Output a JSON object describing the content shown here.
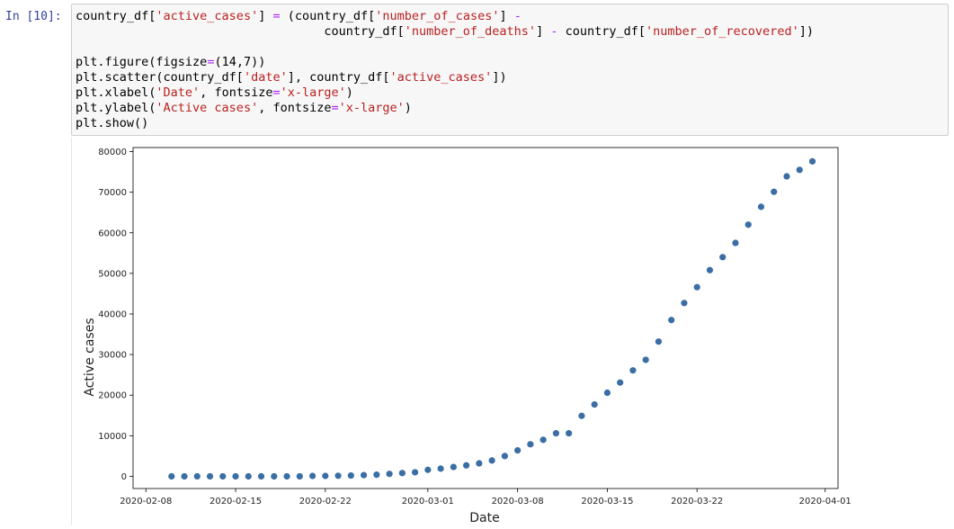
{
  "cell": {
    "prompt": "In [10]:",
    "code_lines": [
      [
        {
          "t": "country_df[",
          "c": ""
        },
        {
          "t": "'active_cases'",
          "c": "str"
        },
        {
          "t": "] ",
          "c": ""
        },
        {
          "t": "=",
          "c": "op"
        },
        {
          "t": " (country_df[",
          "c": ""
        },
        {
          "t": "'number_of_cases'",
          "c": "str"
        },
        {
          "t": "] ",
          "c": ""
        },
        {
          "t": "-",
          "c": "op"
        }
      ],
      [
        {
          "t": "                                  country_df[",
          "c": ""
        },
        {
          "t": "'number_of_deaths'",
          "c": "str"
        },
        {
          "t": "] ",
          "c": ""
        },
        {
          "t": "-",
          "c": "op"
        },
        {
          "t": " country_df[",
          "c": ""
        },
        {
          "t": "'number_of_recovered'",
          "c": "str"
        },
        {
          "t": "])",
          "c": ""
        }
      ],
      [],
      [
        {
          "t": "plt.figure(figsize",
          "c": ""
        },
        {
          "t": "=",
          "c": "op"
        },
        {
          "t": "(14,7))",
          "c": ""
        }
      ],
      [
        {
          "t": "plt.scatter(country_df[",
          "c": ""
        },
        {
          "t": "'date'",
          "c": "str"
        },
        {
          "t": "], country_df[",
          "c": ""
        },
        {
          "t": "'active_cases'",
          "c": "str"
        },
        {
          "t": "])",
          "c": ""
        }
      ],
      [
        {
          "t": "plt.xlabel(",
          "c": ""
        },
        {
          "t": "'Date'",
          "c": "str"
        },
        {
          "t": ", fontsize",
          "c": ""
        },
        {
          "t": "=",
          "c": "op"
        },
        {
          "t": "'x-large'",
          "c": "str"
        },
        {
          "t": ")",
          "c": ""
        }
      ],
      [
        {
          "t": "plt.ylabel(",
          "c": ""
        },
        {
          "t": "'Active cases'",
          "c": "str"
        },
        {
          "t": ", fontsize",
          "c": ""
        },
        {
          "t": "=",
          "c": "op"
        },
        {
          "t": "'x-large'",
          "c": "str"
        },
        {
          "t": ")",
          "c": ""
        }
      ],
      [
        {
          "t": "plt.show()",
          "c": ""
        }
      ]
    ]
  },
  "chart_data": {
    "type": "scatter",
    "xlabel": "Date",
    "ylabel": "Active cases",
    "xlim": [
      "2020-02-07",
      "2020-04-02"
    ],
    "ylim": [
      -3000,
      81000
    ],
    "xticks": [
      "2020-02-08",
      "2020-02-15",
      "2020-02-22",
      "2020-03-01",
      "2020-03-08",
      "2020-03-15",
      "2020-03-22",
      "2020-04-01"
    ],
    "yticks": [
      0,
      10000,
      20000,
      30000,
      40000,
      50000,
      60000,
      70000,
      80000
    ],
    "marker_color": "#3b6ea5",
    "grid": false,
    "points": [
      {
        "x": "2020-02-10",
        "y": 0
      },
      {
        "x": "2020-02-11",
        "y": 0
      },
      {
        "x": "2020-02-12",
        "y": 0
      },
      {
        "x": "2020-02-13",
        "y": 0
      },
      {
        "x": "2020-02-14",
        "y": 0
      },
      {
        "x": "2020-02-15",
        "y": 0
      },
      {
        "x": "2020-02-16",
        "y": 0
      },
      {
        "x": "2020-02-17",
        "y": 0
      },
      {
        "x": "2020-02-18",
        "y": 0
      },
      {
        "x": "2020-02-19",
        "y": 0
      },
      {
        "x": "2020-02-20",
        "y": 0
      },
      {
        "x": "2020-02-21",
        "y": 100
      },
      {
        "x": "2020-02-22",
        "y": 100
      },
      {
        "x": "2020-02-23",
        "y": 150
      },
      {
        "x": "2020-02-24",
        "y": 200
      },
      {
        "x": "2020-02-25",
        "y": 300
      },
      {
        "x": "2020-02-26",
        "y": 400
      },
      {
        "x": "2020-02-27",
        "y": 600
      },
      {
        "x": "2020-02-28",
        "y": 800
      },
      {
        "x": "2020-02-29",
        "y": 1000
      },
      {
        "x": "2020-03-01",
        "y": 1600
      },
      {
        "x": "2020-03-02",
        "y": 1900
      },
      {
        "x": "2020-03-03",
        "y": 2300
      },
      {
        "x": "2020-03-04",
        "y": 2700
      },
      {
        "x": "2020-03-05",
        "y": 3200
      },
      {
        "x": "2020-03-06",
        "y": 3900
      },
      {
        "x": "2020-03-07",
        "y": 5000
      },
      {
        "x": "2020-03-08",
        "y": 6400
      },
      {
        "x": "2020-03-09",
        "y": 7900
      },
      {
        "x": "2020-03-10",
        "y": 9000
      },
      {
        "x": "2020-03-11",
        "y": 10600
      },
      {
        "x": "2020-03-12",
        "y": 10600
      },
      {
        "x": "2020-03-13",
        "y": 14900
      },
      {
        "x": "2020-03-14",
        "y": 17700
      },
      {
        "x": "2020-03-15",
        "y": 20600
      },
      {
        "x": "2020-03-16",
        "y": 23100
      },
      {
        "x": "2020-03-17",
        "y": 26100
      },
      {
        "x": "2020-03-18",
        "y": 28700
      },
      {
        "x": "2020-03-19",
        "y": 33200
      },
      {
        "x": "2020-03-20",
        "y": 38500
      },
      {
        "x": "2020-03-21",
        "y": 42700
      },
      {
        "x": "2020-03-22",
        "y": 46600
      },
      {
        "x": "2020-03-23",
        "y": 50800
      },
      {
        "x": "2020-03-24",
        "y": 54000
      },
      {
        "x": "2020-03-25",
        "y": 57500
      },
      {
        "x": "2020-03-26",
        "y": 62000
      },
      {
        "x": "2020-03-27",
        "y": 66400
      },
      {
        "x": "2020-03-28",
        "y": 70100
      },
      {
        "x": "2020-03-29",
        "y": 73900
      },
      {
        "x": "2020-03-30",
        "y": 75500
      },
      {
        "x": "2020-03-31",
        "y": 77600
      }
    ]
  }
}
